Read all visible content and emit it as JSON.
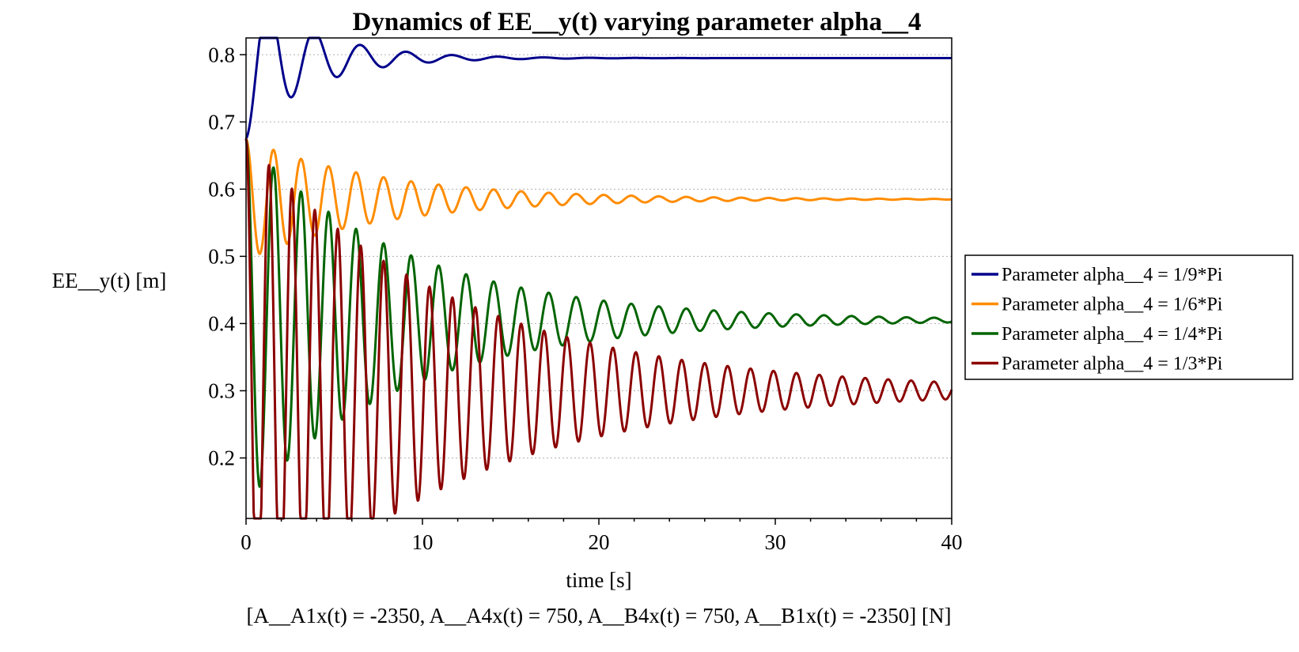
{
  "chart_data": {
    "type": "line",
    "title": "Dynamics of EE__y(t) varying parameter alpha__4",
    "xlabel": "time [s]",
    "ylabel": "EE__y(t) [m]",
    "caption": "[A__A1x(t) = -2350, A__A4x(t) = 750, A__B4x(t) = 750, A__B1x(t) = -2350] [N]",
    "xlim": [
      0,
      40
    ],
    "ylim": [
      0.11,
      0.825
    ],
    "xticks": [
      0,
      10,
      20,
      30,
      40
    ],
    "xtick_labels": [
      "0",
      "10",
      "20",
      "30",
      "40"
    ],
    "yticks": [
      0.2,
      0.3,
      0.4,
      0.5,
      0.6,
      0.7,
      0.8
    ],
    "ytick_labels": [
      "0.2",
      "0.3",
      "0.4",
      "0.5",
      "0.6",
      "0.7",
      "0.8"
    ],
    "grid": "horizontal dotted",
    "legend_position": "right",
    "series": [
      {
        "name": "Parameter alpha__4 = 1/9*Pi",
        "color": "#00008b",
        "model": {
          "y0": 0.675,
          "final": 0.795,
          "amplitude": -0.12,
          "period": 2.6,
          "decay": 0.28
        },
        "points": [
          [
            0,
            0.675
          ],
          [
            0.5,
            0.78
          ],
          [
            1.2,
            0.822
          ],
          [
            2.5,
            0.777
          ],
          [
            3.8,
            0.808
          ],
          [
            5,
            0.787
          ],
          [
            6.4,
            0.8
          ],
          [
            7.7,
            0.792
          ],
          [
            9,
            0.798
          ],
          [
            11.5,
            0.795
          ],
          [
            40,
            0.795
          ]
        ]
      },
      {
        "name": "Parameter alpha__4 = 1/6*Pi",
        "color": "#ff8c00",
        "model": {
          "y0": 0.675,
          "final": 0.585,
          "amplitude": 0.09,
          "period": 1.56,
          "decay": 0.13
        },
        "points": [
          [
            0,
            0.675
          ],
          [
            1.0,
            0.515
          ],
          [
            2.1,
            0.645
          ],
          [
            3.0,
            0.54
          ],
          [
            3.8,
            0.625
          ],
          [
            4.9,
            0.555
          ],
          [
            5.9,
            0.61
          ],
          [
            6.9,
            0.565
          ],
          [
            7.8,
            0.6
          ],
          [
            20,
            0.587
          ],
          [
            40,
            0.585
          ]
        ]
      },
      {
        "name": "Parameter alpha__4 = 1/4*Pi",
        "color": "#006400",
        "model": {
          "y0": 0.675,
          "final": 0.405,
          "amplitude": 0.27,
          "period": 1.56,
          "decay": 0.11
        },
        "points": [
          [
            0,
            0.675
          ],
          [
            0.7,
            0.265
          ],
          [
            1.5,
            0.545
          ],
          [
            2.3,
            0.285
          ],
          [
            3.0,
            0.51
          ],
          [
            3.8,
            0.305
          ],
          [
            4.5,
            0.5
          ],
          [
            5.3,
            0.33
          ],
          [
            6,
            0.48
          ],
          [
            20,
            0.405
          ],
          [
            40,
            0.405
          ]
        ]
      },
      {
        "name": "Parameter alpha__4 = 1/3*Pi",
        "color": "#8b0000",
        "model": {
          "y0": 0.675,
          "final": 0.3,
          "amplitude": 0.375,
          "period": 1.3,
          "decay": 0.085
        },
        "points": [
          [
            0,
            0.675
          ],
          [
            0.6,
            0.115
          ],
          [
            1.3,
            0.48
          ],
          [
            1.9,
            0.135
          ],
          [
            2.5,
            0.455
          ],
          [
            3.1,
            0.16
          ],
          [
            3.7,
            0.42
          ],
          [
            4.4,
            0.19
          ],
          [
            5,
            0.4
          ],
          [
            20,
            0.305
          ],
          [
            40,
            0.3
          ]
        ]
      }
    ]
  }
}
